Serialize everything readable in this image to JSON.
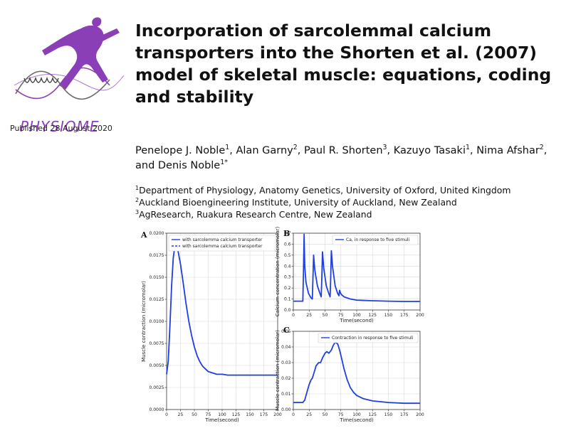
{
  "brand": {
    "name": "PHYSIOME",
    "published": "Published 28 August 2020",
    "color": "#8a3fb7"
  },
  "title": "Incorporation of sarcolemmal calcium transporters into the Shorten et al. (2007) model of skeletal muscle: equations, coding and stability",
  "title_lines": [
    "Incorporation of sarcolemmal calcium",
    "transporters into the Shorten et al. (2007)",
    "model of skeletal muscle: equations, coding",
    "and stability"
  ],
  "authors": [
    {
      "name": "Penelope J. Noble",
      "aff": "1",
      "sep": ", "
    },
    {
      "name": "Alan Garny",
      "aff": "2",
      "sep": ", "
    },
    {
      "name": "Paul R. Shorten",
      "aff": "3",
      "sep": ", "
    },
    {
      "name": "Kazuyo Tasaki",
      "aff": "1",
      "sep": ", "
    },
    {
      "name": "Nima Afshar",
      "aff": "2",
      "sep": ", and "
    },
    {
      "name": "Denis Noble",
      "aff": "1*",
      "sep": ""
    }
  ],
  "affiliations": [
    {
      "num": "1",
      "text": "Department of Physiology, Anatomy  Genetics, University of Oxford, United Kingdom"
    },
    {
      "num": "2",
      "text": "Auckland Bioengineering Institute, University of Auckland, New Zealand"
    },
    {
      "num": "3",
      "text": "AgResearch, Ruakura Research Centre, New Zealand"
    }
  ],
  "chart_data": [
    {
      "panel": "A",
      "type": "line",
      "title": "",
      "xlabel": "Time(second)",
      "ylabel": "Muscle contraction (micromolar)",
      "xlim": [
        0,
        200
      ],
      "ylim": [
        0,
        0.02
      ],
      "xticks": [
        "0",
        "25",
        "50",
        "75",
        "100",
        "125",
        "150",
        "175",
        "200"
      ],
      "yticks": [
        "0.0000",
        "0.0025",
        "0.0050",
        "0.0075",
        "0.0100",
        "0.0125",
        "0.0150",
        "0.0175",
        "0.0200"
      ],
      "grid": true,
      "legend_position": "top-right",
      "series": [
        {
          "name": "with sarcolemma calcium transporter",
          "style": "solid",
          "color": "#1f3fe0",
          "x": [
            0,
            3,
            6,
            9,
            12,
            15,
            17,
            20,
            25,
            30,
            35,
            40,
            45,
            50,
            55,
            60,
            65,
            70,
            75,
            80,
            90,
            100,
            110,
            125,
            150,
            175,
            200
          ],
          "y": [
            0.004,
            0.0055,
            0.0095,
            0.014,
            0.0172,
            0.0186,
            0.0187,
            0.0182,
            0.0165,
            0.0143,
            0.012,
            0.01,
            0.0084,
            0.0071,
            0.0061,
            0.0054,
            0.0049,
            0.0046,
            0.0043,
            0.0042,
            0.004,
            0.004,
            0.0039,
            0.0039,
            0.0039,
            0.0039,
            0.0039
          ]
        },
        {
          "name": "with sarcolemma calcium transporter",
          "style": "dashed",
          "color": "#1f3fe0",
          "x": [
            0,
            3,
            6,
            9,
            12,
            15,
            17,
            20,
            25,
            30,
            35,
            40,
            45,
            50,
            55,
            60,
            65,
            70,
            75,
            80,
            90,
            100,
            110,
            125,
            150,
            175,
            200
          ],
          "y": [
            0.004,
            0.0055,
            0.0095,
            0.014,
            0.0172,
            0.0186,
            0.0187,
            0.0182,
            0.0165,
            0.0143,
            0.012,
            0.01,
            0.0084,
            0.0071,
            0.0061,
            0.0054,
            0.0049,
            0.0046,
            0.0043,
            0.0042,
            0.004,
            0.004,
            0.0039,
            0.0039,
            0.0039,
            0.0039,
            0.0039
          ]
        }
      ]
    },
    {
      "panel": "B",
      "type": "line",
      "title": "",
      "xlabel": "Time(second)",
      "ylabel": "Calcium concentration (micromolar)",
      "xlim": [
        0,
        200
      ],
      "ylim": [
        0,
        0.7
      ],
      "xticks": [
        "0",
        "25",
        "50",
        "75",
        "100",
        "125",
        "150",
        "175",
        "200"
      ],
      "yticks": [
        "0.0",
        "0.1",
        "0.2",
        "0.3",
        "0.4",
        "0.5",
        "0.6",
        "0.7"
      ],
      "grid": true,
      "legend_position": "top-right",
      "series": [
        {
          "name": "Ca, in response to five stimuli",
          "style": "solid",
          "color": "#1f3fe0",
          "x": [
            0,
            15,
            16,
            17,
            18,
            20,
            24,
            28,
            30,
            31,
            32,
            34,
            38,
            42,
            44,
            45,
            46,
            48,
            52,
            56,
            58,
            59,
            60,
            62,
            66,
            70,
            72,
            73,
            74,
            76,
            80,
            90,
            100,
            120,
            150,
            175,
            200
          ],
          "y": [
            0.08,
            0.08,
            0.35,
            0.69,
            0.4,
            0.25,
            0.15,
            0.11,
            0.1,
            0.3,
            0.5,
            0.36,
            0.22,
            0.15,
            0.12,
            0.3,
            0.53,
            0.38,
            0.22,
            0.15,
            0.12,
            0.3,
            0.54,
            0.39,
            0.22,
            0.15,
            0.13,
            0.18,
            0.16,
            0.14,
            0.12,
            0.1,
            0.09,
            0.085,
            0.08,
            0.078,
            0.078
          ]
        }
      ]
    },
    {
      "panel": "C",
      "type": "line",
      "title": "",
      "xlabel": "Time(second)",
      "ylabel": "Muscle contraction (micromolar)",
      "xlim": [
        0,
        200
      ],
      "ylim": [
        0,
        0.05
      ],
      "xticks": [
        "0",
        "25",
        "50",
        "75",
        "100",
        "125",
        "150",
        "175",
        "200"
      ],
      "yticks": [
        "0.00",
        "0.01",
        "0.02",
        "0.03",
        "0.04",
        "0.05"
      ],
      "grid": true,
      "legend_position": "top-right",
      "series": [
        {
          "name": "Contraction in response to five stimuli",
          "style": "solid",
          "color": "#1f3fe0",
          "x": [
            0,
            15,
            18,
            20,
            25,
            28,
            30,
            33,
            36,
            40,
            43,
            46,
            50,
            53,
            56,
            60,
            63,
            66,
            70,
            73,
            76,
            80,
            85,
            90,
            95,
            100,
            110,
            125,
            150,
            175,
            200
          ],
          "y": [
            0.0045,
            0.0045,
            0.006,
            0.009,
            0.016,
            0.019,
            0.02,
            0.024,
            0.028,
            0.03,
            0.03,
            0.033,
            0.036,
            0.037,
            0.036,
            0.038,
            0.041,
            0.043,
            0.042,
            0.038,
            0.033,
            0.026,
            0.019,
            0.014,
            0.011,
            0.009,
            0.007,
            0.0055,
            0.0045,
            0.004,
            0.004
          ]
        }
      ]
    }
  ]
}
